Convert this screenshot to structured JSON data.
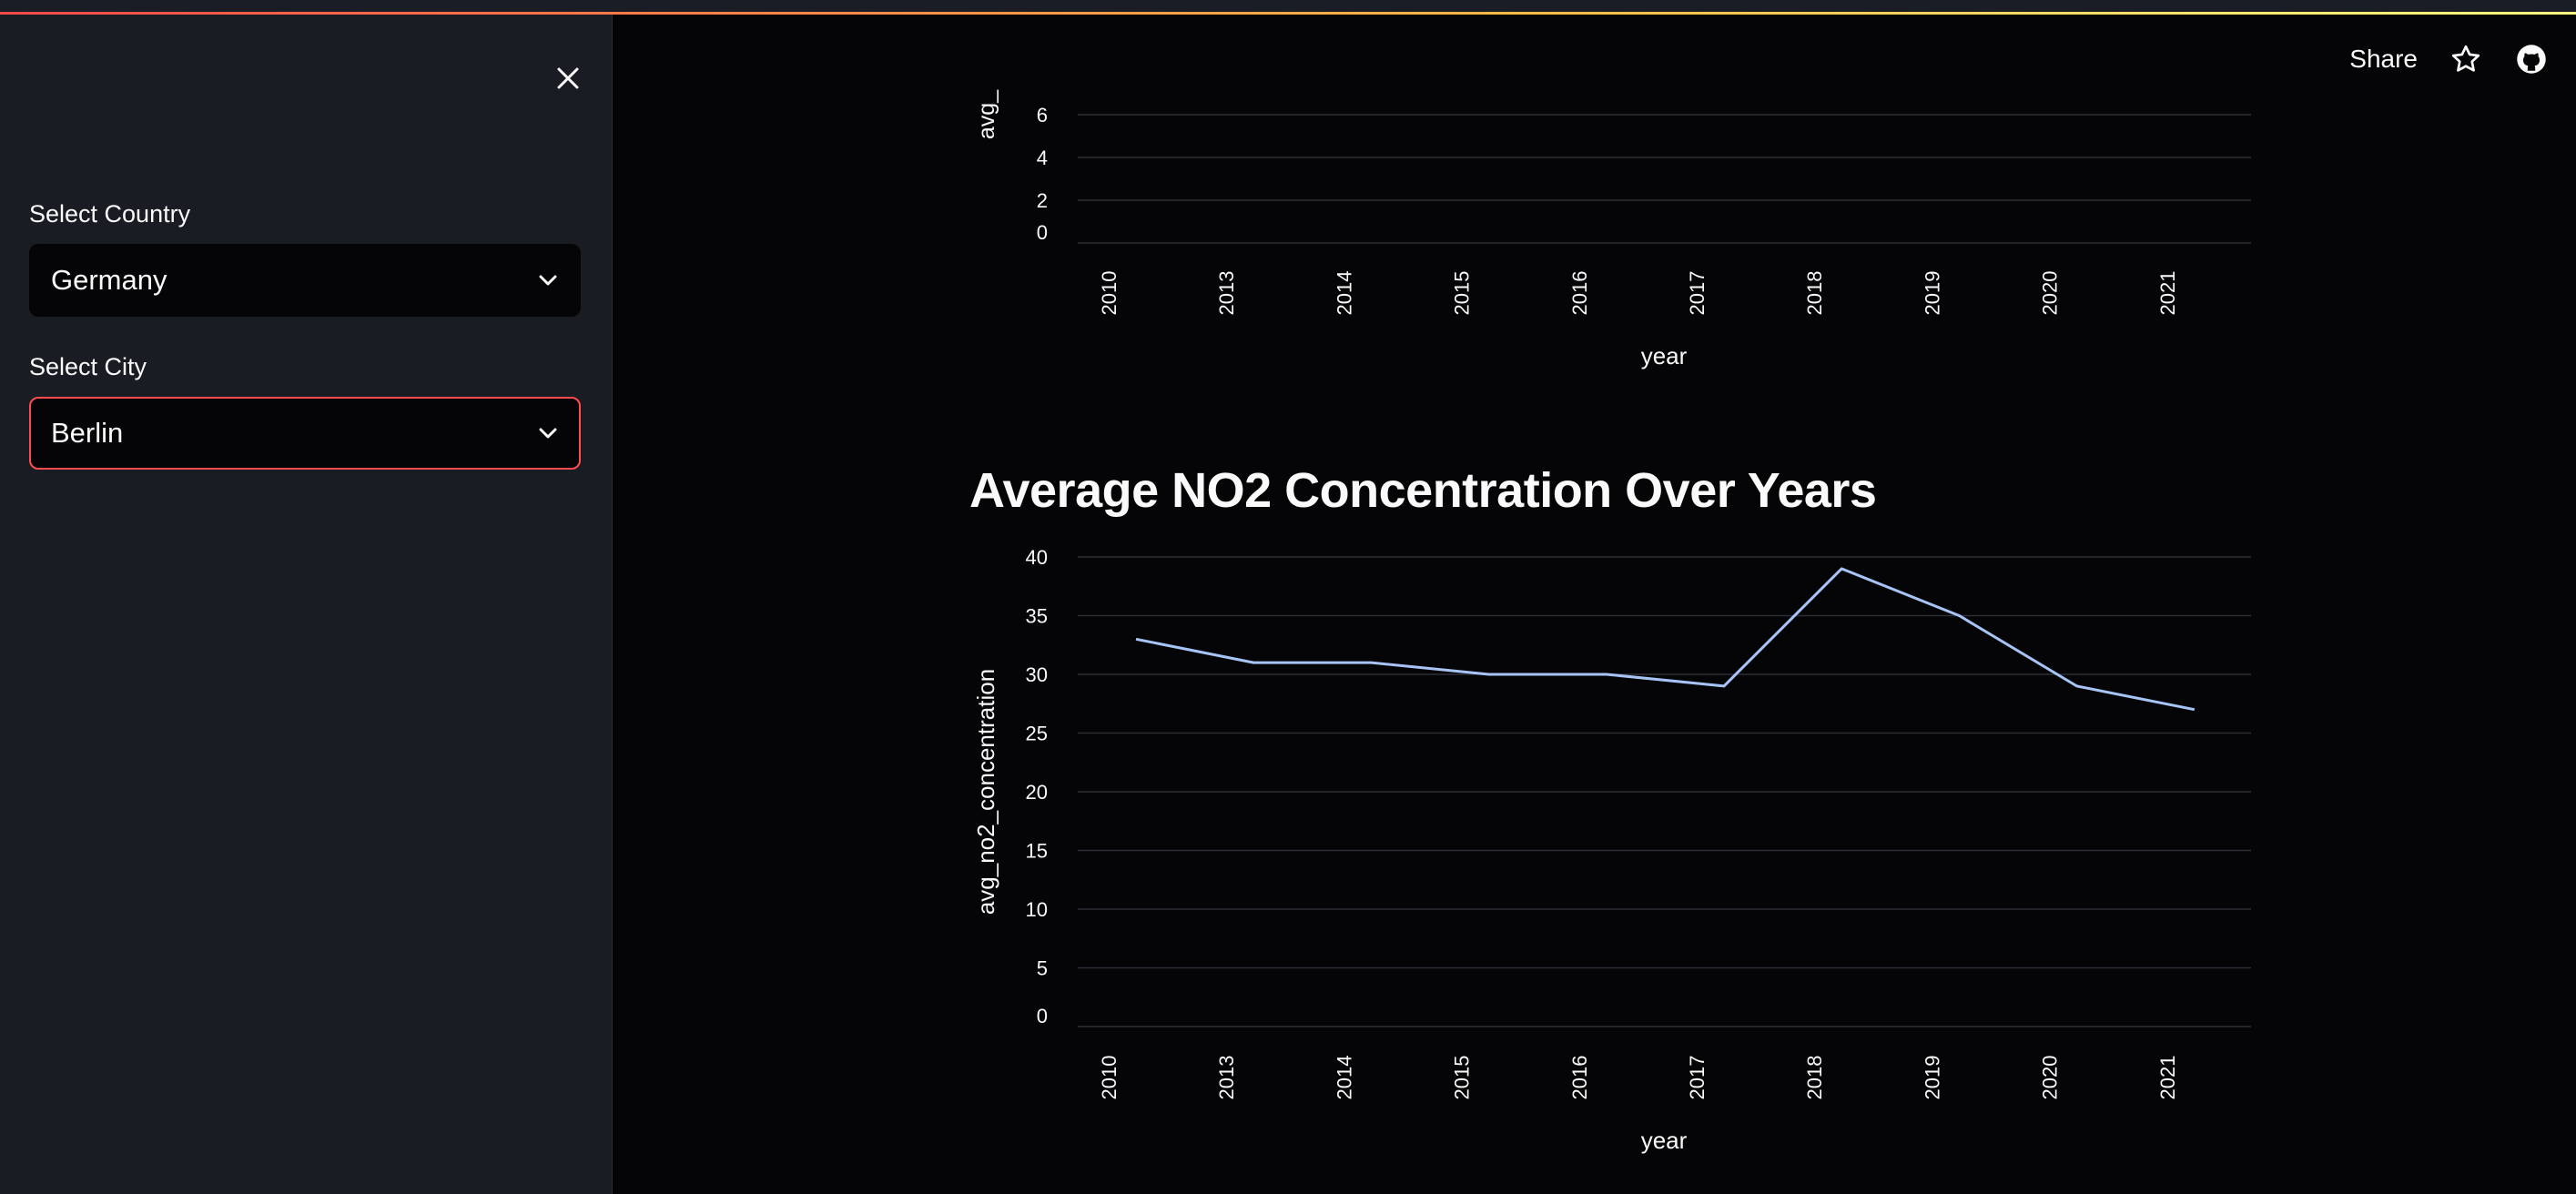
{
  "sidebar": {
    "country_label": "Select Country",
    "country_value": "Germany",
    "city_label": "Select City",
    "city_value": "Berlin"
  },
  "toolbar": {
    "share_label": "Share"
  },
  "icons": {
    "close": "close-icon",
    "chevron": "chevron-down-icon",
    "star": "star-icon",
    "github": "github-icon"
  },
  "colors": {
    "accent": "#ff4b4b",
    "line": "#a8c4f7",
    "background": "#050507",
    "sidebar": "#1a1c24"
  },
  "top_chart": {
    "ylabel": "avg_",
    "xlabel": "year",
    "categories": [
      "2010",
      "2013",
      "2014",
      "2015",
      "2016",
      "2017",
      "2018",
      "2019",
      "2020",
      "2021"
    ],
    "yticks": [
      "6",
      "4",
      "2",
      "0"
    ]
  },
  "main": {
    "title": "Average NO2 Concentration Over Years"
  },
  "chart_data": {
    "type": "line",
    "title": "Average NO2 Concentration Over Years",
    "xlabel": "year",
    "ylabel": "avg_no2_concentration",
    "categories": [
      "2010",
      "2013",
      "2014",
      "2015",
      "2016",
      "2017",
      "2018",
      "2019",
      "2020",
      "2021"
    ],
    "values": [
      33,
      31,
      31,
      30,
      30,
      29,
      39,
      35,
      29,
      27
    ],
    "ylim": [
      0,
      40
    ],
    "yticks": [
      0,
      5,
      10,
      15,
      20,
      25,
      30,
      35,
      40
    ],
    "grid": true
  }
}
